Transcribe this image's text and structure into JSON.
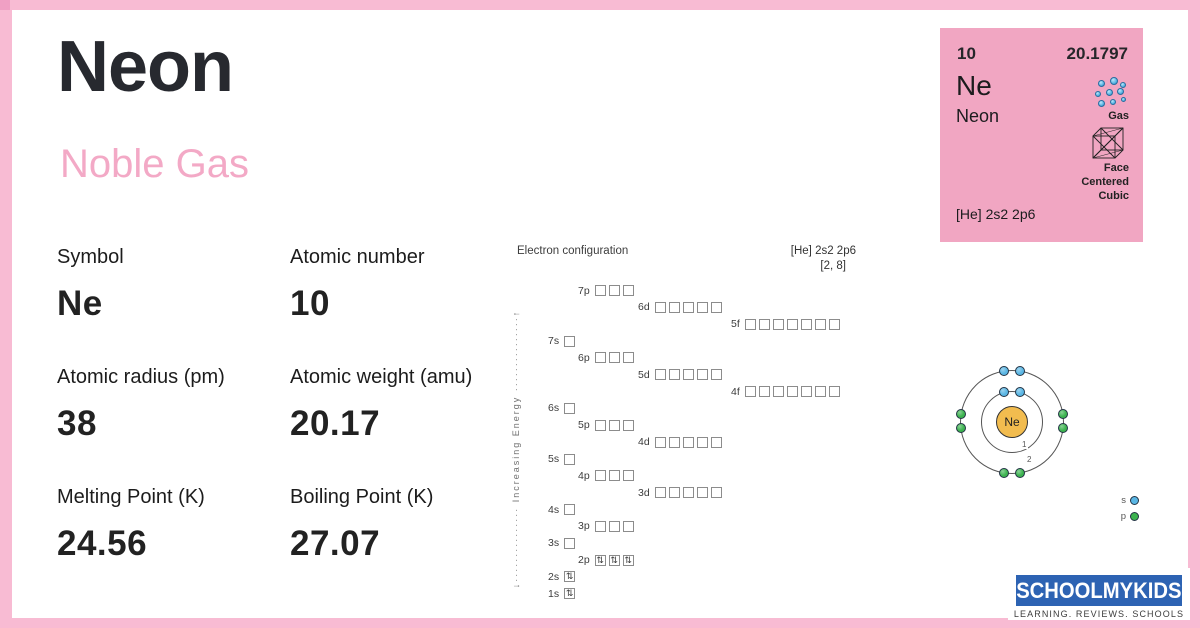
{
  "colors": {
    "frame_pink": "#f8bbd3",
    "card_pink": "#f1a6c2",
    "accent_pink": "#f3a9c6",
    "ink": "#27292f",
    "logo_blue": "#2d63b3",
    "s_electron_blue": "#5ab6e4",
    "p_electron_green": "#3cb34f",
    "nucleus_orange": "#f2bc4f"
  },
  "header": {
    "title": "Neon",
    "category": "Noble Gas"
  },
  "properties": [
    {
      "label": "Symbol",
      "value": "Ne"
    },
    {
      "label": "Atomic number",
      "value": "10"
    },
    {
      "label": "Atomic radius (pm)",
      "value": "38"
    },
    {
      "label": "Atomic weight (amu)",
      "value": "20.17"
    },
    {
      "label": "Melting Point (K)",
      "value": "24.56"
    },
    {
      "label": "Boiling Point (K)",
      "value": "27.07"
    }
  ],
  "electron_configuration": {
    "title": "Electron configuration",
    "notation": "[He] 2s2 2p6",
    "shell_notation": "[2, 8]",
    "energy_axis_label": "Increasing Energy",
    "paired_glyph": "⇅",
    "orbitals": [
      {
        "label": "7p",
        "type": "p",
        "count": 3,
        "filled": 0
      },
      {
        "label": "6d",
        "type": "d",
        "count": 5,
        "filled": 0
      },
      {
        "label": "5f",
        "type": "f",
        "count": 7,
        "filled": 0
      },
      {
        "label": "7s",
        "type": "s",
        "count": 1,
        "filled": 0
      },
      {
        "label": "6p",
        "type": "p",
        "count": 3,
        "filled": 0
      },
      {
        "label": "5d",
        "type": "d",
        "count": 5,
        "filled": 0
      },
      {
        "label": "4f",
        "type": "f",
        "count": 7,
        "filled": 0
      },
      {
        "label": "6s",
        "type": "s",
        "count": 1,
        "filled": 0
      },
      {
        "label": "5p",
        "type": "p",
        "count": 3,
        "filled": 0
      },
      {
        "label": "4d",
        "type": "d",
        "count": 5,
        "filled": 0
      },
      {
        "label": "5s",
        "type": "s",
        "count": 1,
        "filled": 0
      },
      {
        "label": "4p",
        "type": "p",
        "count": 3,
        "filled": 0
      },
      {
        "label": "3d",
        "type": "d",
        "count": 5,
        "filled": 0
      },
      {
        "label": "4s",
        "type": "s",
        "count": 1,
        "filled": 0
      },
      {
        "label": "3p",
        "type": "p",
        "count": 3,
        "filled": 0
      },
      {
        "label": "3s",
        "type": "s",
        "count": 1,
        "filled": 0
      },
      {
        "label": "2p",
        "type": "p",
        "count": 3,
        "filled": 3
      },
      {
        "label": "2s",
        "type": "s",
        "count": 1,
        "filled": 1
      },
      {
        "label": "1s",
        "type": "s",
        "count": 1,
        "filled": 1
      }
    ]
  },
  "element_card": {
    "atomic_number": "10",
    "atomic_weight": "20.1797",
    "symbol": "Ne",
    "name": "Neon",
    "phase_label": "Gas",
    "crystal_structure_label": "Face Centered Cubic",
    "electron_config": "[He] 2s2 2p6"
  },
  "bohr_model": {
    "nucleus_label": "Ne",
    "shell_labels": [
      "1",
      "2"
    ],
    "shell_electrons": [
      2,
      8
    ],
    "legend": [
      {
        "label": "s",
        "type": "s"
      },
      {
        "label": "p",
        "type": "p"
      }
    ]
  },
  "logo": {
    "brand": "SCHOOLMYKIDS",
    "tagline": "LEARNING. REVIEWS. SCHOOLS"
  }
}
